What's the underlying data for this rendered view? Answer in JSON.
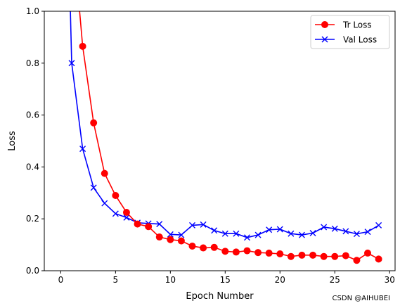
{
  "chart_data": {
    "type": "line",
    "xlabel": "Epoch Number",
    "ylabel": "Loss",
    "xlim": [
      -1.5,
      30.5
    ],
    "ylim": [
      0,
      1.0
    ],
    "x_ticks": [
      0,
      5,
      10,
      15,
      20,
      25,
      30
    ],
    "y_ticks": [
      0.0,
      0.2,
      0.4,
      0.6,
      0.8,
      1.0
    ],
    "x_tick_labels": [
      "0",
      "5",
      "10",
      "15",
      "20",
      "25",
      "30"
    ],
    "y_tick_labels": [
      "0.0",
      "0.2",
      "0.4",
      "0.6",
      "0.8",
      "1.0"
    ],
    "grid": false,
    "legend_position": "top-right",
    "series": [
      {
        "name": "Tr Loss",
        "color": "#ff0000",
        "marker": "circle",
        "x": [
          1,
          2,
          3,
          4,
          5,
          6,
          7,
          8,
          9,
          10,
          11,
          12,
          13,
          14,
          15,
          16,
          17,
          18,
          19,
          20,
          21,
          22,
          23,
          24,
          25,
          26,
          27,
          28,
          29
        ],
        "values": [
          1.35,
          0.865,
          0.57,
          0.375,
          0.29,
          0.225,
          0.18,
          0.17,
          0.13,
          0.12,
          0.115,
          0.095,
          0.088,
          0.09,
          0.075,
          0.072,
          0.077,
          0.07,
          0.068,
          0.065,
          0.055,
          0.06,
          0.06,
          0.055,
          0.055,
          0.058,
          0.04,
          0.068,
          0.045
        ]
      },
      {
        "name": "Val Loss",
        "color": "#0000ff",
        "marker": "x",
        "x": [
          1,
          2,
          3,
          4,
          5,
          6,
          7,
          8,
          9,
          10,
          11,
          12,
          13,
          14,
          15,
          16,
          17,
          18,
          19,
          20,
          21,
          22,
          23,
          24,
          25,
          26,
          27,
          28,
          29
        ],
        "values": [
          0.8,
          0.47,
          0.32,
          0.26,
          0.22,
          0.205,
          0.185,
          0.182,
          0.18,
          0.14,
          0.138,
          0.175,
          0.178,
          0.155,
          0.143,
          0.143,
          0.128,
          0.138,
          0.158,
          0.16,
          0.143,
          0.138,
          0.145,
          0.168,
          0.162,
          0.152,
          0.142,
          0.15,
          0.175
        ]
      },
      {
        "name": "_val_prefix",
        "color": "#0000ff",
        "marker": "none",
        "x": [
          0.85,
          1
        ],
        "values": [
          1.05,
          0.8
        ]
      }
    ]
  },
  "watermark": "CSDN @AIHUBEI"
}
